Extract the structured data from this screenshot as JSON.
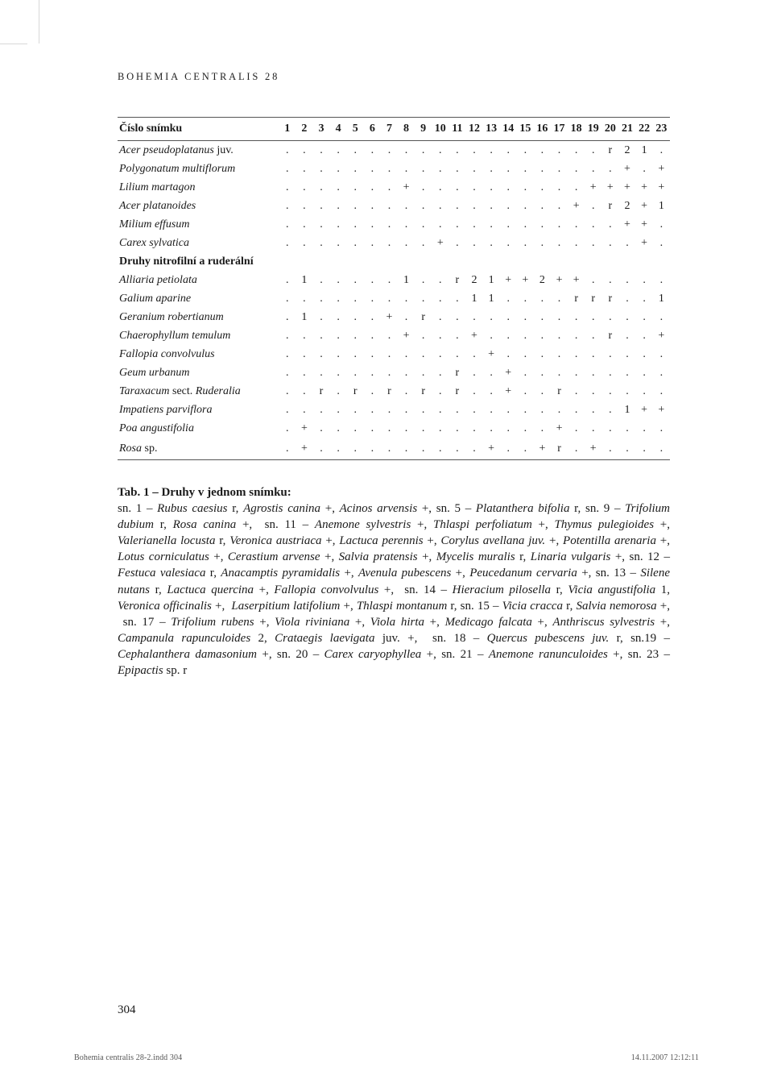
{
  "running_head": "BOHEMIA CENTRALIS 28",
  "folio": "304",
  "slug_left": "Bohemia centralis 28-2.indd   304",
  "slug_right": "14.11.2007   12:12:11",
  "table": {
    "header_label": "Číslo snímku",
    "columns": [
      "1",
      "2",
      "3",
      "4",
      "5",
      "6",
      "7",
      "8",
      "9",
      "10",
      "11",
      "12",
      "13",
      "14",
      "15",
      "16",
      "17",
      "18",
      "19",
      "20",
      "21",
      "22",
      "23"
    ],
    "rows": [
      {
        "label_html": "<span class='i'>Acer pseudoplatanus</span> <span class='r'>juv.</span>",
        "cells": [
          ".",
          ".",
          ".",
          ".",
          ".",
          ".",
          ".",
          ".",
          ".",
          ".",
          ".",
          ".",
          ".",
          ".",
          ".",
          ".",
          ".",
          ".",
          ".",
          "r",
          "2",
          "1",
          "."
        ]
      },
      {
        "label_html": "<span class='i'>Polygonatum multiflorum</span>",
        "cells": [
          ".",
          ".",
          ".",
          ".",
          ".",
          ".",
          ".",
          ".",
          ".",
          ".",
          ".",
          ".",
          ".",
          ".",
          ".",
          ".",
          ".",
          ".",
          ".",
          ".",
          "+",
          ".",
          "+"
        ]
      },
      {
        "label_html": "<span class='i'>Lilium martagon</span>",
        "cells": [
          ".",
          ".",
          ".",
          ".",
          ".",
          ".",
          ".",
          "+",
          ".",
          ".",
          ".",
          ".",
          ".",
          ".",
          ".",
          ".",
          ".",
          ".",
          "+",
          "+",
          "+",
          "+",
          "+"
        ]
      },
      {
        "label_html": "<span class='i'>Acer platanoides</span>",
        "cells": [
          ".",
          ".",
          ".",
          ".",
          ".",
          ".",
          ".",
          ".",
          ".",
          ".",
          ".",
          ".",
          ".",
          ".",
          ".",
          ".",
          ".",
          "+",
          ".",
          "r",
          "2",
          "+",
          "1"
        ]
      },
      {
        "label_html": "<span class='i'>Milium effusum</span>",
        "cells": [
          ".",
          ".",
          ".",
          ".",
          ".",
          ".",
          ".",
          ".",
          ".",
          ".",
          ".",
          ".",
          ".",
          ".",
          ".",
          ".",
          ".",
          ".",
          ".",
          ".",
          "+",
          "+",
          "."
        ]
      },
      {
        "label_html": "<span class='i'>Carex sylvatica</span>",
        "cells": [
          ".",
          ".",
          ".",
          ".",
          ".",
          ".",
          ".",
          ".",
          ".",
          "+",
          ".",
          ".",
          ".",
          ".",
          ".",
          ".",
          ".",
          ".",
          ".",
          ".",
          ".",
          "+",
          "."
        ]
      },
      {
        "section": true,
        "label_html": "Druhy nitrofilní a ruderální",
        "cells": []
      },
      {
        "label_html": "<span class='i'>Alliaria petiolata</span>",
        "cells": [
          ".",
          "1",
          ".",
          ".",
          ".",
          ".",
          ".",
          "1",
          ".",
          ".",
          "r",
          "2",
          "1",
          "+",
          "+",
          "2",
          "+",
          "+",
          ".",
          ".",
          ".",
          ".",
          "."
        ]
      },
      {
        "label_html": "<span class='i'>Galium aparine</span>",
        "cells": [
          ".",
          ".",
          ".",
          ".",
          ".",
          ".",
          ".",
          ".",
          ".",
          ".",
          ".",
          "1",
          "1",
          ".",
          ".",
          ".",
          ".",
          "r",
          "r",
          "r",
          ".",
          ".",
          "1"
        ]
      },
      {
        "label_html": "<span class='i'>Geranium robertianum</span>",
        "cells": [
          ".",
          "1",
          ".",
          ".",
          ".",
          ".",
          "+",
          ".",
          "r",
          ".",
          ".",
          ".",
          ".",
          ".",
          ".",
          ".",
          ".",
          ".",
          ".",
          ".",
          ".",
          ".",
          "."
        ]
      },
      {
        "label_html": "<span class='i'>Chaerophyllum temulum</span>",
        "cells": [
          ".",
          ".",
          ".",
          ".",
          ".",
          ".",
          ".",
          "+",
          ".",
          ".",
          ".",
          "+",
          ".",
          ".",
          ".",
          ".",
          ".",
          ".",
          ".",
          "r",
          ".",
          ".",
          "+"
        ]
      },
      {
        "label_html": "<span class='i'>Fallopia convolvulus</span>",
        "cells": [
          ".",
          ".",
          ".",
          ".",
          ".",
          ".",
          ".",
          ".",
          ".",
          ".",
          ".",
          ".",
          "+",
          ".",
          ".",
          ".",
          ".",
          ".",
          ".",
          ".",
          ".",
          ".",
          "."
        ]
      },
      {
        "label_html": "<span class='i'>Geum urbanum</span>",
        "cells": [
          ".",
          ".",
          ".",
          ".",
          ".",
          ".",
          ".",
          ".",
          ".",
          ".",
          "r",
          ".",
          ".",
          "+",
          ".",
          ".",
          ".",
          ".",
          ".",
          ".",
          ".",
          ".",
          "."
        ]
      },
      {
        "label_html": "<span class='i'>Taraxacum</span> <span class='r'>sect.</span> <span class='i'>Ruderalia</span>",
        "cells": [
          ".",
          ".",
          "r",
          ".",
          "r",
          ".",
          "r",
          ".",
          "r",
          ".",
          "r",
          ".",
          ".",
          "+",
          ".",
          ".",
          "r",
          ".",
          ".",
          ".",
          ".",
          ".",
          "."
        ]
      },
      {
        "label_html": "<span class='i'>Impatiens parviflora</span>",
        "cells": [
          ".",
          ".",
          ".",
          ".",
          ".",
          ".",
          ".",
          ".",
          ".",
          ".",
          ".",
          ".",
          ".",
          ".",
          ".",
          ".",
          ".",
          ".",
          ".",
          ".",
          "1",
          "+",
          "+"
        ]
      },
      {
        "label_html": "<span class='i'>Poa angustifolia</span>",
        "cells": [
          ".",
          "+",
          ".",
          ".",
          ".",
          ".",
          ".",
          ".",
          ".",
          ".",
          ".",
          ".",
          ".",
          ".",
          ".",
          ".",
          "+",
          ".",
          ".",
          ".",
          ".",
          ".",
          "."
        ]
      },
      {
        "label_html": "<span class='i'>Rosa</span> <span class='r'>sp.</span>",
        "last": true,
        "cells": [
          ".",
          "+",
          ".",
          ".",
          ".",
          ".",
          ".",
          ".",
          ".",
          ".",
          ".",
          ".",
          "+",
          ".",
          ".",
          "+",
          "r",
          ".",
          "+",
          ".",
          ".",
          ".",
          "."
        ]
      }
    ]
  },
  "caption": {
    "title": "Tab. 1 – Druhy v jednom snímku:",
    "body_html": "sn. 1 – <i>Rubus caesius</i> r, <i>Agrostis canina</i> +, <i>Acinos arvensis</i> +, sn. 5 – <i>Platanthera bifolia</i> r, sn. 9 – <i>Trifolium dubium</i> r, <i>Rosa canina</i> +, &nbsp;sn. 11 – <i>Anemone sylvestris</i> +, <i>Thlaspi perfoliatum</i> +, <i>Thymus pulegioides</i> +, <i>Valerianella locusta</i> r, <i>Veronica austriaca</i> +, <i>Lactuca perennis</i> +, <i>Corylus avellana juv.</i> +, <i>Potentilla arenaria</i> +, <i>Lotus corniculatus</i> +, <i>Cerastium arvense</i> +, <i>Salvia pratensis</i> +, <i>Mycelis muralis</i> r, <i>Linaria vulgaris</i> +, sn. 12 – <i>Festuca valesiaca</i> r, <i>Anacamptis pyramidalis</i> +, <i>Avenula pubescens</i> +, <i>Peucedanum cervaria</i> +, sn. 13 – <i>Silene nutans</i> r, <i>Lactuca quercina</i> +, <i>Fallopia convolvulus</i> +, &nbsp;sn. 14 – <i>Hieracium pilosella</i> r, <i>Vicia angustifolia</i> 1, <i>Veronica officinalis</i> +, &nbsp;<i>Laserpitium latifolium</i> +, <i>Thlaspi montanum</i> r, sn. 15 – <i>Vicia cracca</i> r, <i>Salvia nemorosa</i> +, &nbsp;sn. 17 – <i>Trifolium rubens</i> +, <i>Viola riviniana</i> +, <i>Viola hirta</i> +, <i>Medicago falcata</i> +, <i>Anthriscus sylvestris</i> +, <i>Campanula rapunculoides</i> 2, <i>Crataegis laevigata</i> juv. +, &nbsp;sn. 18 – <i>Quercus pubescens juv.</i> r, sn.19 – <i>Cephalanthera damasonium</i> +, sn. 20 – <i>Carex caryophyllea</i> +, sn. 21 – <i>Anemone ranunculoides</i> +, sn. 23 – <i>Epipactis</i> sp. r"
  }
}
